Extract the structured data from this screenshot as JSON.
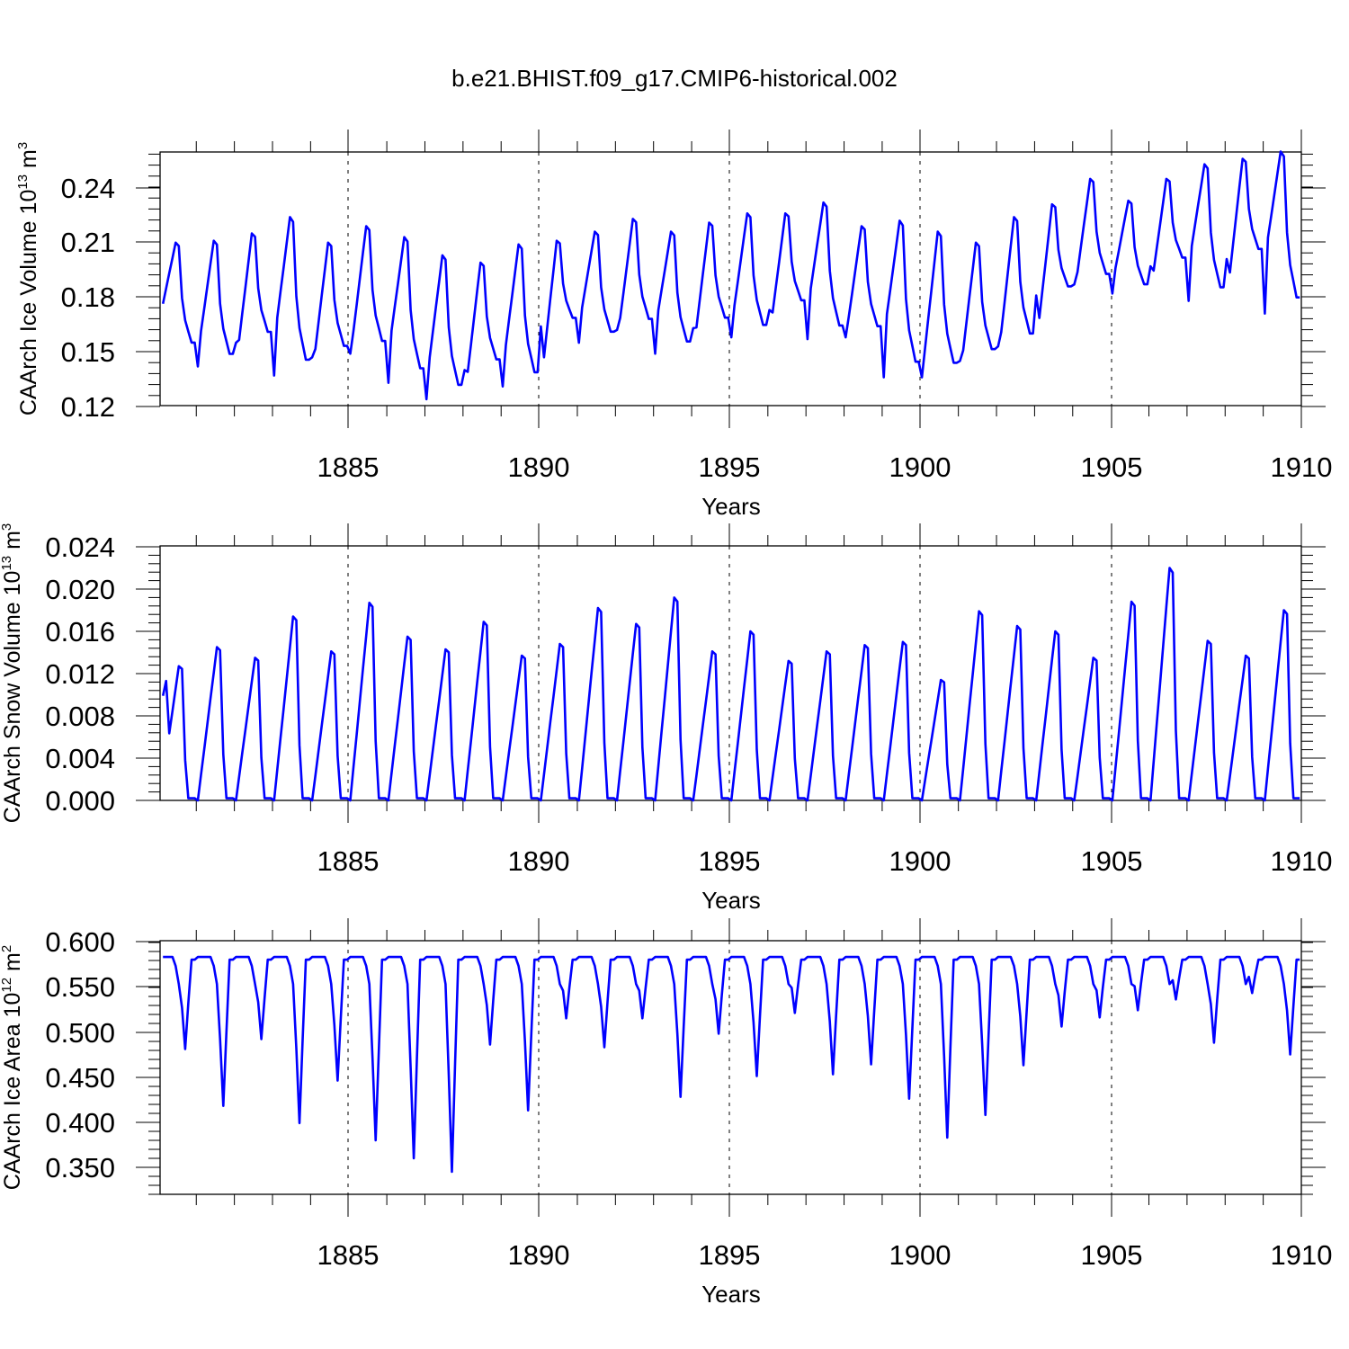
{
  "figure_title": "b.e21.BHIST.f09_g17.CMIP6-historical.002",
  "colors": {
    "series": "#0000ff",
    "axes": "#000000",
    "background": "#ffffff"
  },
  "chart_data": [
    {
      "type": "line",
      "name": "ice-volume",
      "ylabel": "CAArch Ice Volume",
      "ylabel_unit_base": "10",
      "ylabel_unit_exp": "13",
      "ylabel_unit": "m",
      "ylabel_unit_unit_exp": "3",
      "xlabel": "Years",
      "xlim": [
        1880.05,
        1910.0
      ],
      "ylim": [
        0.12,
        0.26
      ],
      "yticks": [
        "0.12",
        "0.15",
        "0.18",
        "0.21",
        "0.24"
      ],
      "xticks": [
        "1885",
        "1890",
        "1895",
        "1900",
        "1905",
        "1910"
      ],
      "series": [
        {
          "name": "CAArch Ice Volume",
          "seasonal_max": [
            0.21,
            0.211,
            0.215,
            0.224,
            0.21,
            0.219,
            0.213,
            0.203,
            0.199,
            0.209,
            0.211,
            0.216,
            0.223,
            0.216,
            0.221,
            0.226,
            0.226,
            0.232,
            0.219,
            0.222,
            0.216,
            0.21,
            0.224,
            0.231,
            0.245,
            0.233,
            0.245,
            0.253,
            0.256,
            0.26
          ],
          "seasonal_min": [
            0.149,
            0.142,
            0.155,
            0.137,
            0.147,
            0.149,
            0.133,
            0.124,
            0.14,
            0.131,
            0.164,
            0.155,
            0.162,
            0.149,
            0.163,
            0.158,
            0.173,
            0.157,
            0.158,
            0.136,
            0.136,
            0.145,
            0.153,
            0.181,
            0.187,
            0.182,
            0.197,
            0.178,
            0.201,
            0.171
          ]
        }
      ]
    },
    {
      "type": "line",
      "name": "snow-volume",
      "ylabel": "CAArch Snow Volume",
      "ylabel_unit_base": "10",
      "ylabel_unit_exp": "13",
      "ylabel_unit": "m",
      "ylabel_unit_unit_exp": "3",
      "xlabel": "Years",
      "xlim": [
        1880.05,
        1910.0
      ],
      "ylim": [
        0.0,
        0.024
      ],
      "yticks": [
        "0.000",
        "0.004",
        "0.008",
        "0.012",
        "0.016",
        "0.020",
        "0.024"
      ],
      "xticks": [
        "1885",
        "1890",
        "1895",
        "1900",
        "1905",
        "1910"
      ],
      "series": [
        {
          "name": "CAArch Snow Volume",
          "seasonal_max": [
            0.0127,
            0.0145,
            0.0135,
            0.0174,
            0.0141,
            0.0187,
            0.0155,
            0.0143,
            0.0169,
            0.0137,
            0.0148,
            0.0182,
            0.0167,
            0.0192,
            0.0141,
            0.016,
            0.0132,
            0.0141,
            0.0147,
            0.015,
            0.0114,
            0.0179,
            0.0165,
            0.016,
            0.0135,
            0.0188,
            0.022,
            0.0151,
            0.0137,
            0.018
          ],
          "seasonal_min": 0.0
        }
      ]
    },
    {
      "type": "line",
      "name": "ice-area",
      "ylabel": "CAArch Ice Area",
      "ylabel_unit_base": "10",
      "ylabel_unit_exp": "12",
      "ylabel_unit": "m",
      "ylabel_unit_unit_exp": "2",
      "xlabel": "Years",
      "xlim": [
        1880.05,
        1910.0
      ],
      "ylim": [
        0.32,
        0.6
      ],
      "yticks": [
        "0.350",
        "0.400",
        "0.450",
        "0.500",
        "0.550",
        "0.600"
      ],
      "xticks": [
        "1885",
        "1890",
        "1895",
        "1900",
        "1905",
        "1910"
      ],
      "series": [
        {
          "name": "CAArch Ice Area",
          "seasonal_max": 0.583,
          "seasonal_min": [
            0.481,
            0.418,
            0.492,
            0.399,
            0.446,
            0.38,
            0.36,
            0.345,
            0.486,
            0.413,
            0.515,
            0.483,
            0.515,
            0.428,
            0.498,
            0.451,
            0.521,
            0.453,
            0.464,
            0.426,
            0.383,
            0.408,
            0.463,
            0.506,
            0.516,
            0.524,
            0.536,
            0.488,
            0.543,
            0.475
          ]
        }
      ]
    }
  ]
}
